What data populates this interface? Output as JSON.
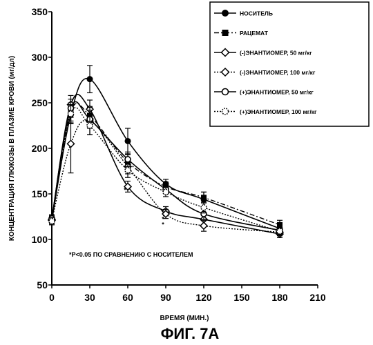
{
  "chart_data": {
    "type": "line",
    "figure_label": "ФИГ. 7А",
    "xlabel": "ВРЕМЯ (МИН.)",
    "ylabel": "КОНЦЕНТРАЦИЯ ГЛЮКОЗЫ В ПЛАЗМЕ КРОВИ (мг/дл)",
    "xlim": [
      0,
      210
    ],
    "ylim": [
      50,
      350
    ],
    "x_ticks": [
      0,
      30,
      60,
      90,
      120,
      150,
      180,
      210
    ],
    "y_ticks": [
      50,
      100,
      150,
      200,
      250,
      300,
      350
    ],
    "note": "*P<0.05 ПО СРАВНЕНИЮ С НОСИТЕЛЕМ",
    "legend_position": "top-right",
    "grid": false,
    "x": [
      0,
      15,
      30,
      60,
      90,
      120,
      180
    ],
    "series": [
      {
        "name": "НОСИТЕЛЬ",
        "marker": "filled-circle",
        "line": "solid",
        "values": [
          121,
          237,
          276,
          208,
          161,
          144,
          112
        ],
        "err": [
          4,
          10,
          15,
          14,
          5,
          8,
          5
        ]
      },
      {
        "name": "РАЦЕМАТ",
        "marker": "filled-square",
        "line": "dashdot",
        "values": [
          123,
          240,
          236,
          185,
          158,
          146,
          116
        ],
        "err": [
          4,
          10,
          10,
          8,
          5,
          6,
          5
        ]
      },
      {
        "name": "(-)ЭНАНТИОМЕР, 50 мг/кг",
        "marker": "open-diamond",
        "line": "solid",
        "values": [
          122,
          248,
          243,
          158,
          131,
          122,
          106
        ],
        "err": [
          4,
          10,
          10,
          6,
          5,
          6,
          4
        ]
      },
      {
        "name": "(-)ЭНАНТИОМЕР, 100 мг/кг",
        "marker": "open-diamond",
        "line": "dotted",
        "values": [
          121,
          205,
          230,
          180,
          128,
          115,
          108
        ],
        "err": [
          4,
          32,
          15,
          8,
          5,
          6,
          4
        ]
      },
      {
        "name": "(+)ЭНАНТИОМЕР, 50 мг/кг",
        "marker": "open-circle",
        "line": "solid",
        "values": [
          123,
          244,
          232,
          188,
          155,
          128,
          110
        ],
        "err": [
          4,
          10,
          10,
          8,
          5,
          6,
          4
        ]
      },
      {
        "name": "(+)ЭНАНТИОМЕР, 100 мг/кг",
        "marker": "dotted-circle",
        "line": "dotted",
        "values": [
          120,
          238,
          225,
          176,
          152,
          135,
          109
        ],
        "err": [
          4,
          10,
          10,
          8,
          5,
          6,
          4
        ]
      }
    ],
    "significance_markers": [
      {
        "x": 60,
        "y": 152,
        "label": "*"
      },
      {
        "x": 90,
        "y": 120,
        "label": "*"
      },
      {
        "x": 90,
        "y": 114,
        "label": "*"
      }
    ]
  }
}
